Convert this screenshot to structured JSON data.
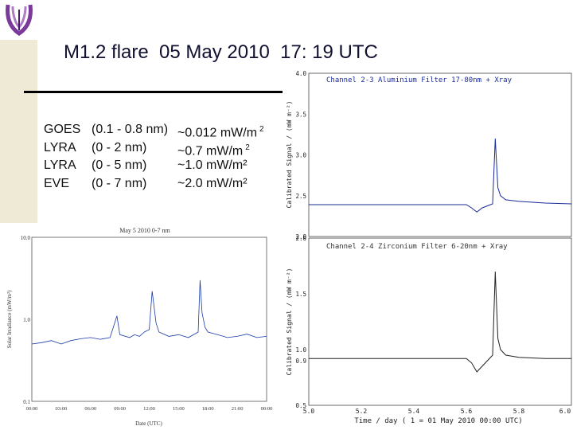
{
  "slide": {
    "title": "M1.2 flare  05 May 2010  17: 19 UTC",
    "info_rows": [
      {
        "instrument": "GOES",
        "band": "(0.1 - 0.8 nm)",
        "value": "~0.012 mW/m",
        "superscript": "2"
      },
      {
        "instrument": "LYRA",
        "band": "(0 - 2 nm)",
        "value": "~0.7 mW/m",
        "superscript": "2"
      },
      {
        "instrument": "LYRA",
        "band": "(0 - 5 nm)",
        "value": "~1.0 mW/m²",
        "superscript": ""
      },
      {
        "instrument": "EVE",
        "band": "(0 - 7 nm)",
        "value": "~2.0 mW/m²",
        "superscript": ""
      }
    ]
  },
  "chart_data": [
    {
      "type": "line",
      "title": "May 5 2010 0-7 nm",
      "ylabel": "Solar Irradiance (mW/m²)",
      "xlabel": "Date (UTC)",
      "yscale": "log",
      "ylim": [
        0.1,
        10.0
      ],
      "y_ticks": [
        "0.1",
        "1.0",
        "10.0"
      ],
      "x_ticks": [
        "00:00",
        "03:00",
        "06:00",
        "09:00",
        "12:00",
        "15:00",
        "18:00",
        "21:00",
        "00:00"
      ],
      "x_hours": [
        0,
        1,
        2,
        3,
        4,
        5,
        6,
        7,
        8,
        8.7,
        9,
        10,
        10.5,
        11,
        11.5,
        12,
        12.3,
        12.7,
        13,
        14,
        15,
        16,
        17,
        17.2,
        17.4,
        17.7,
        18,
        19,
        20,
        21,
        22,
        23,
        24
      ],
      "y_values": [
        0.5,
        0.52,
        0.55,
        0.5,
        0.55,
        0.58,
        0.6,
        0.57,
        0.6,
        1.1,
        0.65,
        0.6,
        0.65,
        0.62,
        0.7,
        0.75,
        2.2,
        0.9,
        0.7,
        0.62,
        0.65,
        0.6,
        0.7,
        3.0,
        1.2,
        0.8,
        0.7,
        0.65,
        0.6,
        0.62,
        0.66,
        0.6,
        0.62
      ],
      "series": [
        {
          "name": "",
          "color": "#1a3aa8"
        }
      ]
    },
    {
      "type": "scatter",
      "title": "Channel 2-3   Aluminium Filter   17-80nm + Xray",
      "ylabel": "Calibrated Signal  / (mW m⁻²)",
      "ylim": [
        2.0,
        4.0
      ],
      "y_ticks": [
        "2.0",
        "2.5",
        "3.0",
        "3.5",
        "4.0"
      ],
      "xlim": [
        5.0,
        6.0
      ],
      "x": [
        5.0,
        5.1,
        5.2,
        5.3,
        5.4,
        5.5,
        5.6,
        5.62,
        5.64,
        5.66,
        5.7,
        5.71,
        5.72,
        5.73,
        5.75,
        5.8,
        5.9,
        6.0
      ],
      "y": [
        2.39,
        2.39,
        2.39,
        2.39,
        2.39,
        2.39,
        2.39,
        2.35,
        2.3,
        2.35,
        2.4,
        3.2,
        2.6,
        2.5,
        2.45,
        2.43,
        2.41,
        2.4
      ],
      "series": [
        {
          "name": "",
          "color": "#1a2a9a"
        }
      ]
    },
    {
      "type": "scatter",
      "title": "Channel 2-4   Zirconium Filter   6-20nm + Xray",
      "ylabel": "Calibrated Signal  / (mW m⁻²)",
      "ylim": [
        0.5,
        2.0
      ],
      "y_ticks": [
        "0.5",
        "0.9",
        "1.0",
        "1.5",
        "2.0"
      ],
      "xlim": [
        5.0,
        6.0
      ],
      "x_ticks": [
        "5.0",
        "5.2",
        "5.4",
        "5.6",
        "5.8",
        "6.0"
      ],
      "xlabel": "Time  /  day  ( 1 = 01 May 2010 00:00 UTC)",
      "x": [
        5.0,
        5.1,
        5.2,
        5.3,
        5.4,
        5.5,
        5.6,
        5.62,
        5.64,
        5.66,
        5.7,
        5.71,
        5.72,
        5.73,
        5.75,
        5.8,
        5.9,
        6.0
      ],
      "y": [
        0.92,
        0.92,
        0.92,
        0.92,
        0.92,
        0.92,
        0.92,
        0.88,
        0.8,
        0.85,
        0.95,
        1.7,
        1.1,
        1.0,
        0.95,
        0.93,
        0.92,
        0.92
      ],
      "series": [
        {
          "name": "",
          "color": "#222222"
        }
      ]
    }
  ]
}
